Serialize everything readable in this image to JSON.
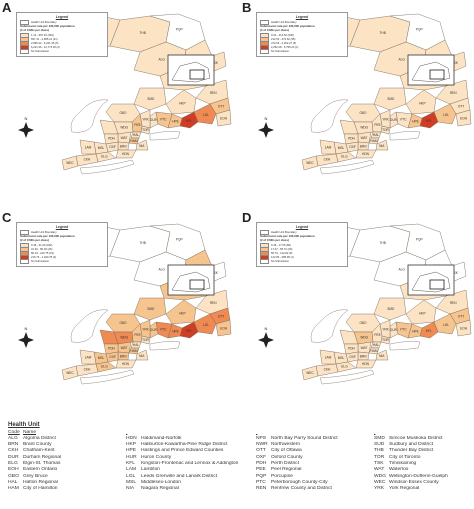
{
  "colors": {
    "no_submission": "#ffffff",
    "boundary": "#7a6e62",
    "lake": "#ffffff",
    "bin1": "#fbe3c4",
    "bin2": "#f6c48e",
    "bin3": "#ee8a52",
    "bin4": "#cf3d22"
  },
  "panels": [
    {
      "letter": "A",
      "legend_title": "Legend",
      "boundary_label": "Health Unit Boundary",
      "subtitle_1": "Submission rate per 100,000 population",
      "subtitle_2": "(# of CSDs per class)",
      "classes": [
        {
          "label": "1.14 - 697.40 (381)",
          "color": "#fbe3c4",
          "level": 1
        },
        {
          "label": "697.41 - 2,895.21 (41)",
          "color": "#f6c48e",
          "level": 2
        },
        {
          "label": "2,895.22 - 6,221.35 (5)",
          "color": "#ee8a52",
          "level": 3
        },
        {
          "label": "6,221.36 - 12,773.18 (2)",
          "color": "#cf3d22",
          "level": 4
        }
      ],
      "no_submission_label": "No Submission",
      "pattern": "A"
    },
    {
      "letter": "B",
      "legend_title": "Legend",
      "boundary_label": "Health Unit Boundary",
      "subtitle_1": "Submission rate per 100,000 population",
      "subtitle_2": "(# of CSDs per class)",
      "classes": [
        {
          "label": "0.62 - 212.52 (335)",
          "color": "#fbe3c4",
          "level": 1
        },
        {
          "label": "212.53 - 472.62 (35)",
          "color": "#f6c48e",
          "level": 2
        },
        {
          "label": "472.63 - 2,262.27 (5)",
          "color": "#ee8a52",
          "level": 3
        },
        {
          "label": "2,262.28 - 5,769.23 (1)",
          "color": "#cf3d22",
          "level": 4
        }
      ],
      "no_submission_label": "No Submission",
      "pattern": "B"
    },
    {
      "letter": "C",
      "legend_title": "Legend",
      "boundary_label": "Health Unit Boundary",
      "subtitle_1": "Submission rate per 100,000 population",
      "subtitle_2": "(# of CSDs per class)",
      "classes": [
        {
          "label": "0.46 - 31.29 (332)",
          "color": "#fbe3c4",
          "level": 1
        },
        {
          "label": "31.30 - 80.18 (46)",
          "color": "#f6c48e",
          "level": 2
        },
        {
          "label": "80.19 - 216.75 (19)",
          "color": "#ee8a52",
          "level": 3
        },
        {
          "label": "216.76 - 1,020.78 (2)",
          "color": "#cf3d22",
          "level": 4
        }
      ],
      "no_submission_label": "No Submission",
      "pattern": "C"
    },
    {
      "letter": "D",
      "legend_title": "Legend",
      "boundary_label": "Health Unit Boundary",
      "subtitle_1": "Submission rate per 100,000 population",
      "subtitle_2": "(# of CSDs per class)",
      "classes": [
        {
          "label": "0.46 - 17.06 (86)",
          "color": "#fbe3c4",
          "level": 1
        },
        {
          "label": "17.07 - 55.72 (29)",
          "color": "#f6c48e",
          "level": 2
        },
        {
          "label": "55.73 - 122.82 (8)",
          "color": "#ee8a52",
          "level": 3
        },
        {
          "label": "122.83 - 385.99 (1)",
          "color": "#cf3d22",
          "level": 4
        }
      ],
      "no_submission_label": "No Submission",
      "pattern": "D"
    }
  ],
  "map_labels": [
    "NWR",
    "THB",
    "PQP",
    "SUD",
    "ALG",
    "TSK",
    "NPS",
    "SMD",
    "REN",
    "BRN",
    "HKP",
    "EOH",
    "LGL",
    "GBO",
    "DUR",
    "PEE",
    "TOR",
    "YRK",
    "WEC",
    "MSL",
    "HAM",
    "OXF",
    "WAT",
    "NIA",
    "KFL",
    "HPE",
    "CKH",
    "LAM",
    "ELG",
    "HDN",
    "PDH",
    "WDG",
    "OTT",
    "HAL",
    "PTC"
  ],
  "compass": "N",
  "health_units": {
    "title": "Health Unit",
    "code_header": "Code",
    "name_header": "Name",
    "columns": [
      [
        {
          "code": "ALG",
          "name": "Algoma District"
        },
        {
          "code": "BRN",
          "name": "Brant County"
        },
        {
          "code": "CKH",
          "name": "Chatham-Kent"
        },
        {
          "code": "DUR",
          "name": "Durham Regional"
        },
        {
          "code": "ELG",
          "name": "Elgin-St. Thomas"
        },
        {
          "code": "EOH",
          "name": "Eastern Ontario"
        },
        {
          "code": "GBO",
          "name": "Grey Bruce"
        },
        {
          "code": "HAL",
          "name": "Halton Regional"
        },
        {
          "code": "HAM",
          "name": "City of Hamilton"
        }
      ],
      [
        {
          "code": "HDN",
          "name": "Haldimand-Norfolk"
        },
        {
          "code": "HKP",
          "name": "Haliburton-Kawartha-Pine Ridge District"
        },
        {
          "code": "HPE",
          "name": "Hastings and Prince Edward Counties"
        },
        {
          "code": "HUR",
          "name": "Huron County"
        },
        {
          "code": "KFL",
          "name": "Kingston-Frontenac and Lennox & Addington"
        },
        {
          "code": "LAM",
          "name": "Lambton"
        },
        {
          "code": "LGL",
          "name": "Leeds Grenville and Lanark District"
        },
        {
          "code": "MSL",
          "name": "Middlesex-London"
        },
        {
          "code": "NIA",
          "name": "Niagara Regional"
        }
      ],
      [
        {
          "code": "NPS",
          "name": "North Bay Parry Sound District"
        },
        {
          "code": "NWR",
          "name": "Northwestern"
        },
        {
          "code": "OTT",
          "name": "City of Ottawa"
        },
        {
          "code": "OXF",
          "name": "Oxford County"
        },
        {
          "code": "PDH",
          "name": "Perth District"
        },
        {
          "code": "PEE",
          "name": "Peel Regional"
        },
        {
          "code": "PQP",
          "name": "Porcupine"
        },
        {
          "code": "PTC",
          "name": "Peterborough County-City"
        },
        {
          "code": "REN",
          "name": "Renfrew County and District"
        }
      ],
      [
        {
          "code": "SMD",
          "name": "Simcoe Muskoka District"
        },
        {
          "code": "SUD",
          "name": "Sudbury and District"
        },
        {
          "code": "THB",
          "name": "Thunder Bay District"
        },
        {
          "code": "TOR",
          "name": "City of Toronto"
        },
        {
          "code": "TSK",
          "name": "Timiskaming"
        },
        {
          "code": "WAT",
          "name": "Waterloo"
        },
        {
          "code": "WDG",
          "name": "Wellington-Dufferin-Guelph"
        },
        {
          "code": "WEC",
          "name": "Windsor-Essex County"
        },
        {
          "code": "YRK",
          "name": "York Regional"
        }
      ]
    ]
  }
}
